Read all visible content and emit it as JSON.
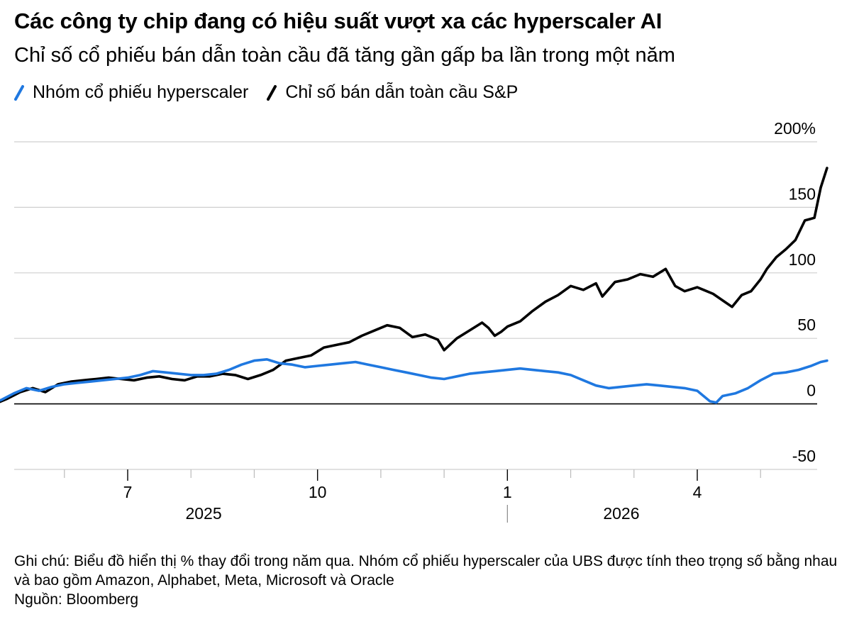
{
  "title": "Các công ty chip đang có hiệu suất vượt xa các hyperscaler AI",
  "subtitle": "Chỉ số cổ phiếu bán dẫn toàn cầu đã tăng gần gấp ba lần trong một năm",
  "legend": [
    {
      "label": "Nhóm cổ phiếu hyperscaler",
      "color": "#1f78e0"
    },
    {
      "label": "Chỉ số bán dẫn toàn cầu S&P",
      "color": "#000000"
    }
  ],
  "notes": {
    "line1": "Ghi chú: Biểu đồ hiển thị % thay đổi trong năm qua. Nhóm cổ phiếu hyperscaler của UBS được tính theo trọng số bằng nhau và bao gồm Amazon, Alphabet, Meta, Microsoft và Oracle",
    "source": "Nguồn: Bloomberg"
  },
  "chart_data": {
    "type": "line",
    "ylim": [
      -50,
      200
    ],
    "yticks": [
      -50,
      0,
      50,
      100,
      150,
      200
    ],
    "ytick_labels": [
      "-50",
      "0",
      "50",
      "100",
      "150",
      "200%"
    ],
    "xlim": [
      0,
      12.05
    ],
    "xticks": [
      {
        "pos": 1.0,
        "label": "7"
      },
      {
        "pos": 4.0,
        "label": "10"
      },
      {
        "pos": 7.0,
        "label": "1"
      },
      {
        "pos": 10.0,
        "label": "4"
      }
    ],
    "minor_xticks": [
      0,
      2,
      3,
      5,
      6,
      8,
      9,
      11
    ],
    "year_labels": [
      {
        "pos": 2.2,
        "label": "2025"
      },
      {
        "pos": 8.8,
        "label": "2026"
      }
    ],
    "year_divider": 7.0,
    "grid": true,
    "legend_position": "top-left",
    "series": [
      {
        "name": "Chỉ số bán dẫn toàn cầu S&P",
        "color": "#000000",
        "points": [
          [
            -1.63,
            0
          ],
          [
            -1.5,
            3
          ],
          [
            -1.3,
            1
          ],
          [
            -1.1,
            0
          ],
          [
            -0.9,
            4
          ],
          [
            -0.7,
            9
          ],
          [
            -0.5,
            12
          ],
          [
            -0.3,
            9
          ],
          [
            -0.1,
            15
          ],
          [
            0.1,
            17
          ],
          [
            0.3,
            18
          ],
          [
            0.5,
            19
          ],
          [
            0.7,
            20
          ],
          [
            0.9,
            19
          ],
          [
            1.1,
            18
          ],
          [
            1.3,
            20
          ],
          [
            1.5,
            21
          ],
          [
            1.7,
            19
          ],
          [
            1.9,
            18
          ],
          [
            2.1,
            21
          ],
          [
            2.3,
            21
          ],
          [
            2.5,
            23
          ],
          [
            2.7,
            22
          ],
          [
            2.9,
            19
          ],
          [
            3.1,
            22
          ],
          [
            3.3,
            26
          ],
          [
            3.5,
            33
          ],
          [
            3.7,
            35
          ],
          [
            3.9,
            37
          ],
          [
            4.1,
            43
          ],
          [
            4.3,
            45
          ],
          [
            4.5,
            47
          ],
          [
            4.7,
            52
          ],
          [
            4.9,
            56
          ],
          [
            5.1,
            60
          ],
          [
            5.3,
            58
          ],
          [
            5.5,
            51
          ],
          [
            5.7,
            53
          ],
          [
            5.9,
            49
          ],
          [
            6.0,
            41
          ],
          [
            6.2,
            50
          ],
          [
            6.4,
            56
          ],
          [
            6.6,
            62
          ],
          [
            6.7,
            58
          ],
          [
            6.8,
            52
          ],
          [
            6.9,
            55
          ],
          [
            7.0,
            59
          ],
          [
            7.2,
            63
          ],
          [
            7.4,
            71
          ],
          [
            7.6,
            78
          ],
          [
            7.8,
            83
          ],
          [
            8.0,
            90
          ],
          [
            8.2,
            87
          ],
          [
            8.4,
            92
          ],
          [
            8.5,
            82
          ],
          [
            8.7,
            93
          ],
          [
            8.9,
            95
          ],
          [
            9.1,
            99
          ],
          [
            9.3,
            97
          ],
          [
            9.5,
            103
          ],
          [
            9.65,
            90
          ],
          [
            9.8,
            86
          ],
          [
            10.0,
            89
          ],
          [
            10.1,
            87
          ],
          [
            10.25,
            84
          ],
          [
            10.4,
            79
          ],
          [
            10.55,
            74
          ],
          [
            10.7,
            83
          ],
          [
            10.85,
            86
          ],
          [
            11.0,
            95
          ],
          [
            11.1,
            103
          ],
          [
            11.25,
            112
          ],
          [
            11.4,
            118
          ],
          [
            11.55,
            125
          ],
          [
            11.7,
            140
          ],
          [
            11.85,
            142
          ],
          [
            11.95,
            165
          ],
          [
            12.05,
            180
          ]
        ]
      },
      {
        "name": "Nhóm cổ phiếu hyperscaler",
        "color": "#1f78e0",
        "points": [
          [
            -1.63,
            0
          ],
          [
            -1.4,
            1
          ],
          [
            -1.2,
            0
          ],
          [
            -1.0,
            3
          ],
          [
            -0.8,
            8
          ],
          [
            -0.6,
            12
          ],
          [
            -0.4,
            10
          ],
          [
            -0.2,
            13
          ],
          [
            0.0,
            15
          ],
          [
            0.2,
            16
          ],
          [
            0.4,
            17
          ],
          [
            0.6,
            18
          ],
          [
            0.8,
            19
          ],
          [
            1.0,
            20
          ],
          [
            1.2,
            22
          ],
          [
            1.4,
            25
          ],
          [
            1.6,
            24
          ],
          [
            1.8,
            23
          ],
          [
            2.0,
            22
          ],
          [
            2.2,
            22
          ],
          [
            2.4,
            23
          ],
          [
            2.6,
            26
          ],
          [
            2.8,
            30
          ],
          [
            3.0,
            33
          ],
          [
            3.2,
            34
          ],
          [
            3.4,
            31
          ],
          [
            3.6,
            30
          ],
          [
            3.8,
            28
          ],
          [
            4.0,
            29
          ],
          [
            4.2,
            30
          ],
          [
            4.4,
            31
          ],
          [
            4.6,
            32
          ],
          [
            4.8,
            30
          ],
          [
            5.0,
            28
          ],
          [
            5.2,
            26
          ],
          [
            5.4,
            24
          ],
          [
            5.6,
            22
          ],
          [
            5.8,
            20
          ],
          [
            6.0,
            19
          ],
          [
            6.2,
            21
          ],
          [
            6.4,
            23
          ],
          [
            6.6,
            24
          ],
          [
            6.8,
            25
          ],
          [
            7.0,
            26
          ],
          [
            7.2,
            27
          ],
          [
            7.4,
            26
          ],
          [
            7.6,
            25
          ],
          [
            7.8,
            24
          ],
          [
            8.0,
            22
          ],
          [
            8.2,
            18
          ],
          [
            8.4,
            14
          ],
          [
            8.6,
            12
          ],
          [
            8.8,
            13
          ],
          [
            9.0,
            14
          ],
          [
            9.2,
            15
          ],
          [
            9.4,
            14
          ],
          [
            9.6,
            13
          ],
          [
            9.8,
            12
          ],
          [
            10.0,
            10
          ],
          [
            10.2,
            2
          ],
          [
            10.3,
            1
          ],
          [
            10.4,
            6
          ],
          [
            10.6,
            8
          ],
          [
            10.8,
            12
          ],
          [
            11.0,
            18
          ],
          [
            11.2,
            23
          ],
          [
            11.4,
            24
          ],
          [
            11.6,
            26
          ],
          [
            11.8,
            29
          ],
          [
            11.95,
            32
          ],
          [
            12.05,
            33
          ]
        ]
      }
    ]
  }
}
